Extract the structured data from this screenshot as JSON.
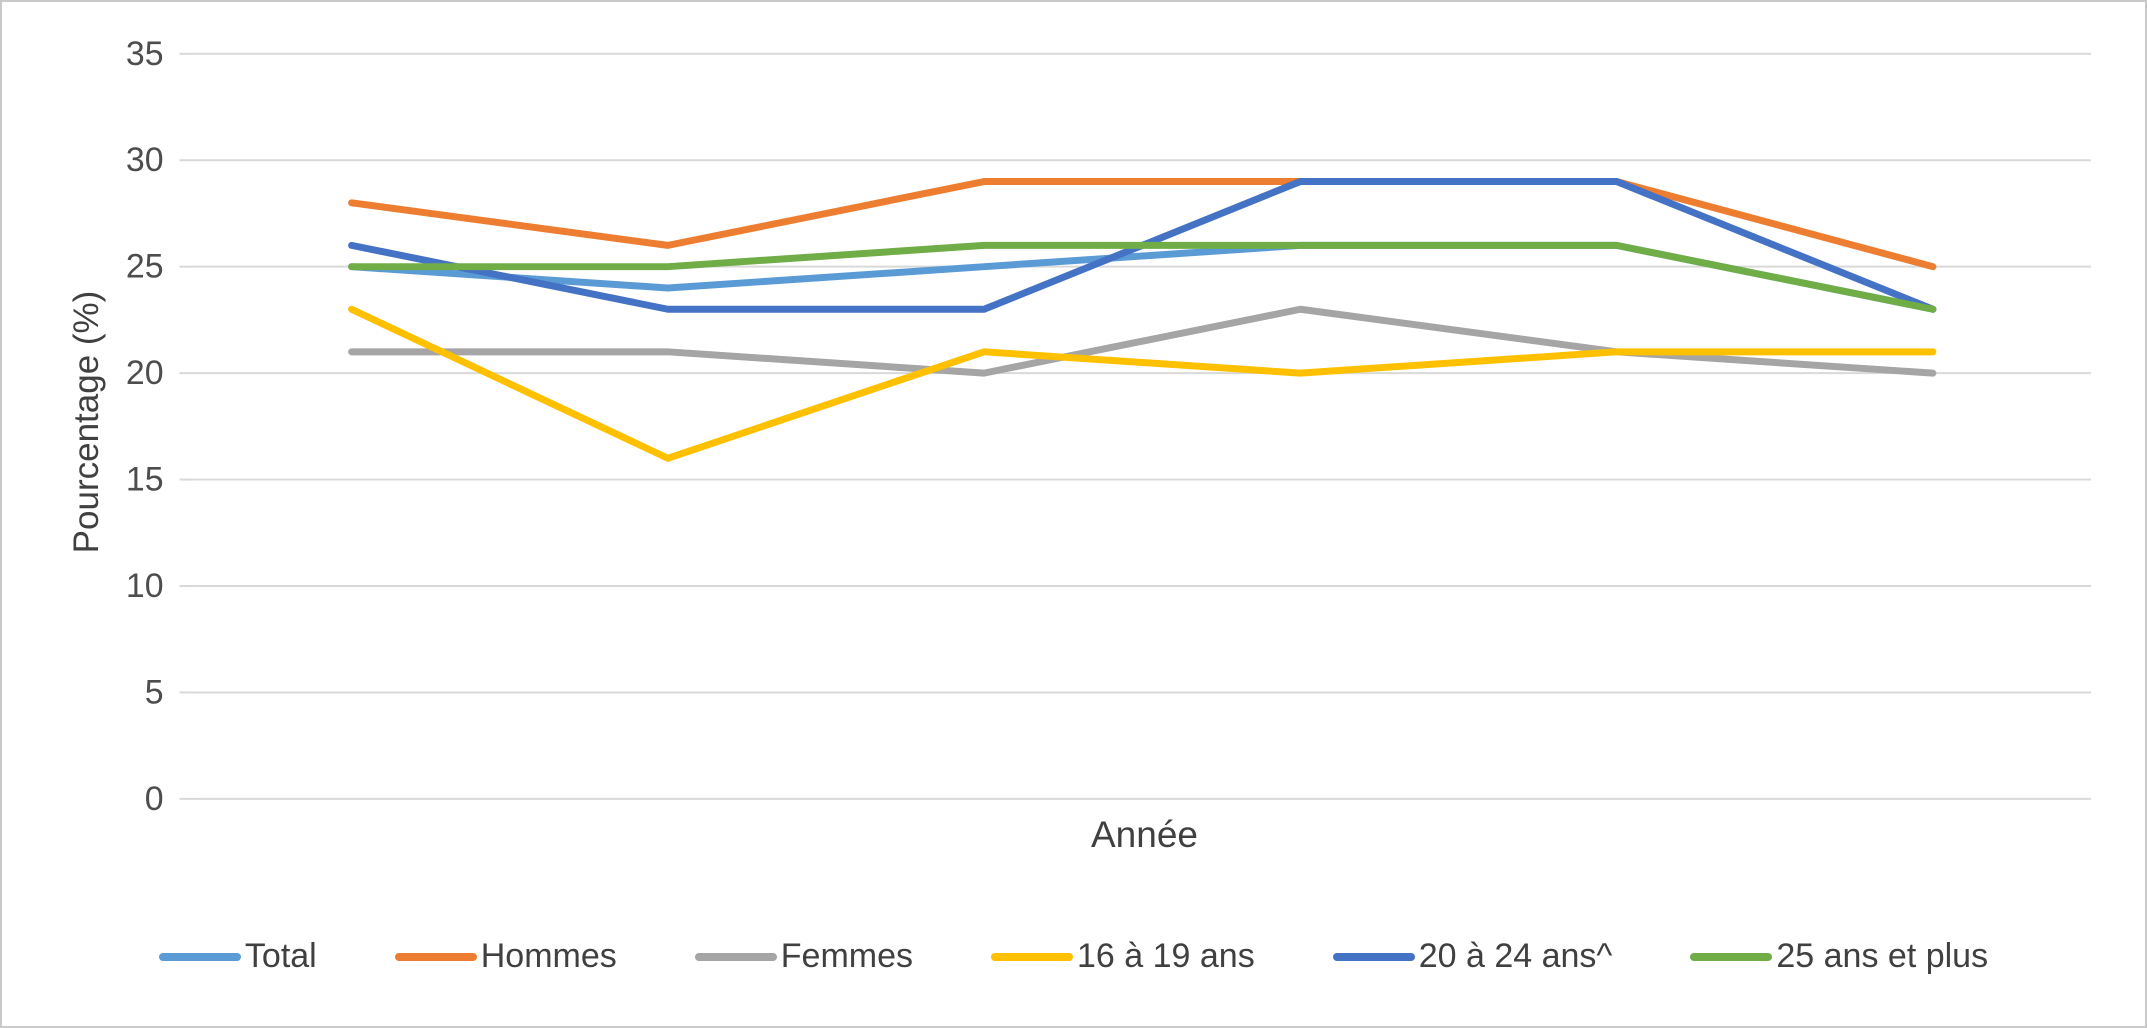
{
  "chart_data": {
    "type": "line",
    "title": "",
    "xlabel": "Année",
    "ylabel": "Pourcentage (%)",
    "ylim": [
      0,
      35
    ],
    "y_ticks": [
      35,
      30,
      25,
      20,
      15,
      10,
      5,
      0
    ],
    "categories": [
      "",
      "",
      "",
      "",
      "",
      ""
    ],
    "grid": "horizontal",
    "legend_position": "bottom",
    "grid_color": "#d9d9d9",
    "text_color": "#595959",
    "series": [
      {
        "name": "Total",
        "color": "#5B9BD5",
        "values": [
          25,
          24,
          25,
          26,
          26,
          23
        ]
      },
      {
        "name": "Hommes",
        "color": "#ED7D31",
        "values": [
          28,
          26,
          29,
          29,
          29,
          25
        ]
      },
      {
        "name": "Femmes",
        "color": "#A5A5A5",
        "values": [
          21,
          21,
          20,
          23,
          21,
          20
        ]
      },
      {
        "name": "16 à 19 ans",
        "color": "#FFC000",
        "values": [
          23,
          16,
          21,
          20,
          21,
          21
        ]
      },
      {
        "name": "20 à 24 ans^",
        "color": "#4472C4",
        "values": [
          26,
          23,
          23,
          29,
          29,
          23
        ]
      },
      {
        "name": "25 ans et plus",
        "color": "#70AD47",
        "values": [
          25,
          25,
          26,
          26,
          26,
          23
        ]
      }
    ]
  }
}
